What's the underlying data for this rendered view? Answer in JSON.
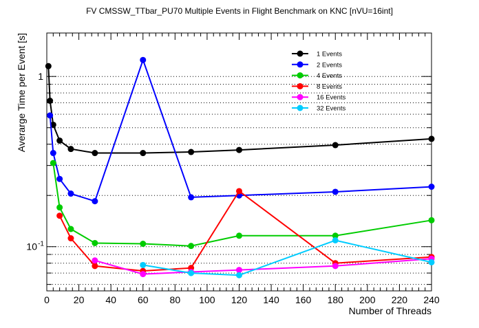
{
  "chart_data": {
    "type": "line",
    "title": "FV CMSSW_TTbar_PU70 Multiple Events in Flight Benchmark on KNC [nVU=16int]",
    "xlabel": "Number of Threads",
    "ylabel": "Averarge Time per Event [s]",
    "xlim": [
      0,
      240
    ],
    "ylim": [
      0.055,
      1.8
    ],
    "y_scale": "log",
    "x_ticks": [
      0,
      20,
      40,
      60,
      80,
      100,
      120,
      140,
      160,
      180,
      200,
      220,
      240
    ],
    "x_tick_labels": [
      "0",
      "20",
      "40",
      "60",
      "80",
      "100",
      "120",
      "140",
      "160",
      "180",
      "200",
      "220",
      "240"
    ],
    "y_tick_labels": [
      {
        "value": 0.1,
        "label": "10",
        "exponent": "-1"
      },
      {
        "value": 1,
        "label": "1",
        "exponent": ""
      }
    ],
    "grid": "horizontal-dotted",
    "legend_position": "top-right",
    "series": [
      {
        "name": "1 Events",
        "color": "#000000",
        "x": [
          1,
          2,
          4,
          8,
          15,
          30,
          60,
          90,
          120,
          180,
          240
        ],
        "y": [
          1.15,
          0.72,
          0.52,
          0.42,
          0.375,
          0.355,
          0.355,
          0.36,
          0.37,
          0.395,
          0.43
        ]
      },
      {
        "name": "2 Events",
        "color": "#0000ff",
        "x": [
          2,
          4,
          8,
          15,
          30,
          60,
          90,
          120,
          180,
          240
        ],
        "y": [
          0.59,
          0.355,
          0.25,
          0.205,
          0.185,
          1.25,
          0.195,
          0.2,
          0.21,
          0.225
        ]
      },
      {
        "name": "4 Events",
        "color": "#00cc00",
        "x": [
          4,
          8,
          15,
          30,
          60,
          90,
          120,
          180,
          240
        ],
        "y": [
          0.31,
          0.17,
          0.127,
          0.105,
          0.104,
          0.101,
          0.116,
          0.116,
          0.143
        ]
      },
      {
        "name": "8 Events",
        "color": "#ff0000",
        "x": [
          8,
          15,
          30,
          60,
          90,
          120,
          180,
          240
        ],
        "y": [
          0.152,
          0.112,
          0.077,
          0.072,
          0.075,
          0.212,
          0.08,
          0.087
        ]
      },
      {
        "name": "16 Events",
        "color": "#ff00ff",
        "x": [
          30,
          60,
          90,
          120,
          180,
          240
        ],
        "y": [
          0.083,
          0.069,
          0.071,
          0.073,
          0.077,
          0.085
        ]
      },
      {
        "name": "32 Events",
        "color": "#00ccff",
        "x": [
          60,
          90,
          120,
          180,
          240
        ],
        "y": [
          0.078,
          0.07,
          0.068,
          0.109,
          0.081
        ]
      }
    ]
  }
}
